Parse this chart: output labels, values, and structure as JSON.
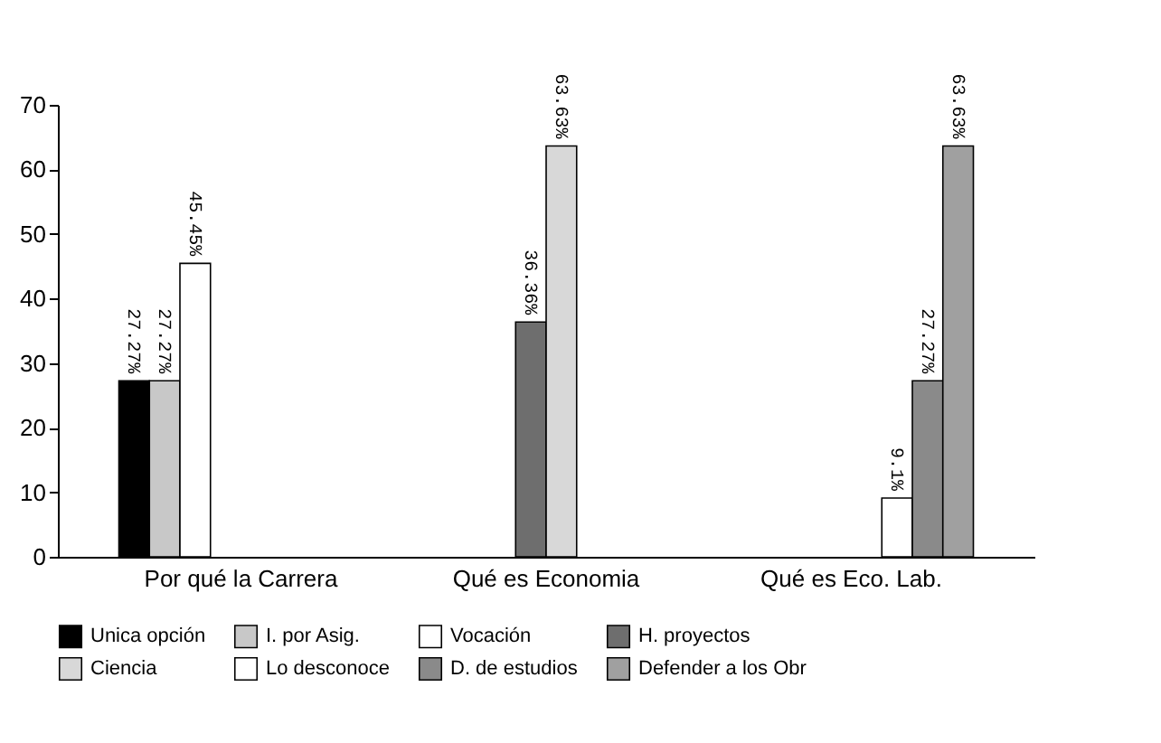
{
  "chart_data": {
    "type": "bar",
    "categories": [
      "Por qué la Carrera",
      "Qué es Economia",
      "Qué es Eco. Lab."
    ],
    "series": [
      {
        "name": "Unica opción",
        "color": "#000000",
        "values": [
          27.27,
          0,
          0
        ],
        "value_labels": [
          "27.27%",
          null,
          null
        ]
      },
      {
        "name": "I. por Asig.",
        "color": "#c8c8c8",
        "values": [
          27.27,
          0,
          0
        ],
        "value_labels": [
          "27.27%",
          null,
          null
        ]
      },
      {
        "name": "Vocación",
        "color": "#ffffff",
        "values": [
          45.45,
          0,
          0
        ],
        "value_labels": [
          "45.45%",
          null,
          null
        ]
      },
      {
        "name": "H. proyectos",
        "color": "#6e6e6e",
        "values": [
          0,
          36.36,
          0
        ],
        "value_labels": [
          null,
          "36.36%",
          null
        ]
      },
      {
        "name": "Ciencia",
        "color": "#d8d8d8",
        "values": [
          0,
          63.63,
          0
        ],
        "value_labels": [
          null,
          "63.63%",
          null
        ]
      },
      {
        "name": "Lo desconoce",
        "color": "#ffffff",
        "values": [
          0,
          0,
          9.1
        ],
        "value_labels": [
          null,
          null,
          "9.1%"
        ]
      },
      {
        "name": "D. de estudios",
        "color": "#8a8a8a",
        "values": [
          0,
          0,
          27.27
        ],
        "value_labels": [
          null,
          null,
          "27.27%"
        ]
      },
      {
        "name": "Defender a los Obr",
        "color": "#a0a0a0",
        "values": [
          0,
          0,
          63.63
        ],
        "value_labels": [
          null,
          null,
          "63.63%"
        ]
      }
    ],
    "ylim": [
      0,
      70
    ],
    "yticks": [
      0,
      10,
      20,
      30,
      40,
      50,
      60,
      70
    ],
    "grid": false,
    "legend": "bottom"
  }
}
